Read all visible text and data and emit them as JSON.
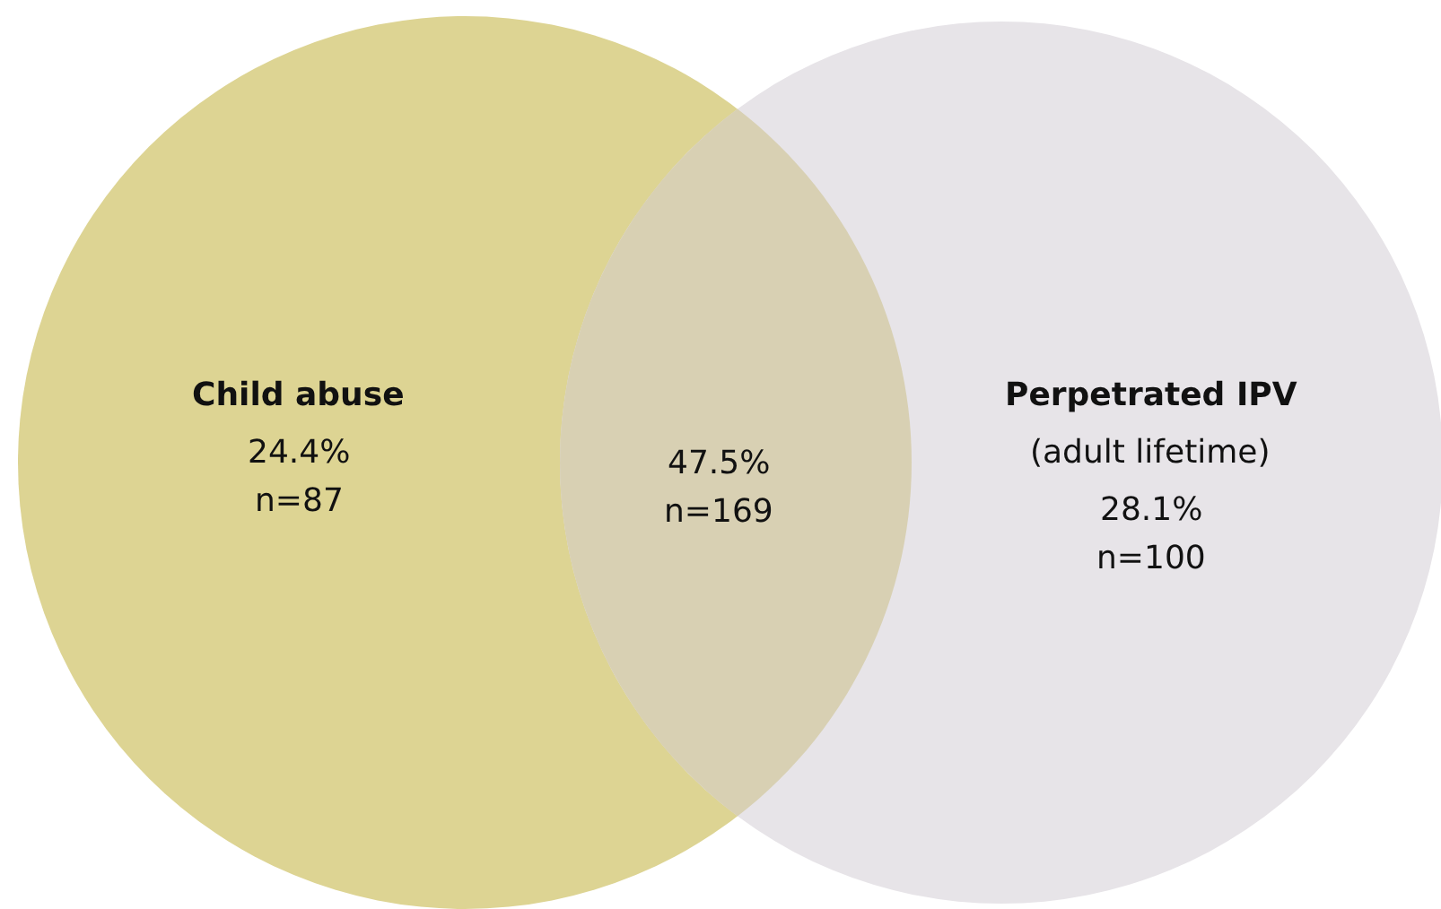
{
  "chart_data": {
    "type": "other",
    "categories": [
      "Child abuse",
      null,
      "Perpetrated IPV"
    ],
    "values": [
      24.4,
      47.5,
      28.1
    ],
    "value_labels": [
      "24.4%",
      "47.5%",
      "28.1%"
    ],
    "colors": [
      "#ddd493",
      "#d8d0b3",
      "#e7e4e8"
    ],
    "annotations": [
      "(adult lifetime)",
      "n=87",
      "n=169",
      "n=100"
    ]
  }
}
